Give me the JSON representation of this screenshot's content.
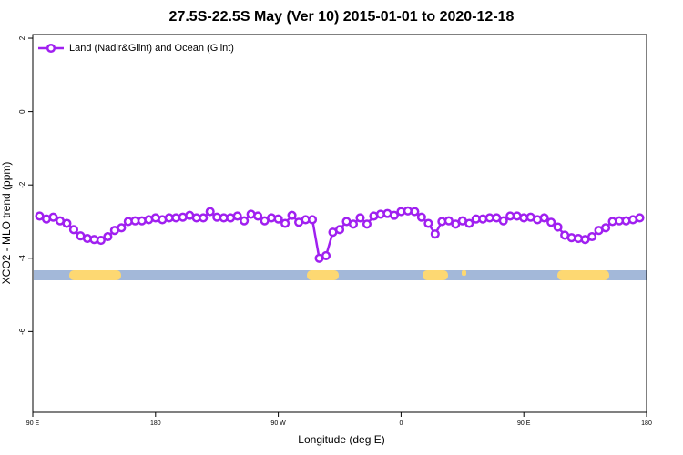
{
  "chart_data": {
    "type": "line",
    "title": "27.5S-22.5S May (Ver 10)   2015-01-01 to 2020-12-18",
    "xlabel": "Longitude (deg E)",
    "ylabel": "XCO2 - MLO trend (ppm)",
    "x": [
      95,
      100,
      105,
      110,
      115,
      120,
      125,
      130,
      135,
      140,
      145,
      150,
      155,
      160,
      165,
      170,
      175,
      180,
      185,
      190,
      195,
      200,
      205,
      210,
      215,
      220,
      225,
      230,
      235,
      240,
      245,
      250,
      255,
      260,
      265,
      270,
      275,
      280,
      285,
      290,
      295,
      300,
      305,
      310,
      315,
      320,
      325,
      330,
      335,
      340,
      345,
      350,
      355,
      360,
      365,
      370,
      375,
      380,
      385,
      390,
      395,
      400,
      405,
      410,
      415,
      420,
      425,
      430,
      435,
      440,
      445,
      450,
      455,
      460,
      465,
      470,
      475,
      480,
      485,
      490,
      495,
      500,
      505,
      510,
      515,
      520,
      525,
      530,
      535
    ],
    "series": [
      {
        "name": "Land (Nadir&Glint) and Ocean (Glint)",
        "color": "#a020f0",
        "values": [
          -2.85,
          -2.93,
          -2.88,
          -2.98,
          -3.05,
          -3.22,
          -3.39,
          -3.46,
          -3.49,
          -3.51,
          -3.41,
          -3.24,
          -3.17,
          -3.0,
          -2.98,
          -2.98,
          -2.95,
          -2.9,
          -2.95,
          -2.9,
          -2.9,
          -2.88,
          -2.83,
          -2.9,
          -2.9,
          -2.73,
          -2.88,
          -2.9,
          -2.9,
          -2.85,
          -2.98,
          -2.8,
          -2.85,
          -2.98,
          -2.9,
          -2.93,
          -3.05,
          -2.83,
          -3.02,
          -2.95,
          -2.95,
          -4.0,
          -3.93,
          -3.29,
          -3.22,
          -3.0,
          -3.07,
          -2.9,
          -3.07,
          -2.85,
          -2.8,
          -2.78,
          -2.83,
          -2.73,
          -2.71,
          -2.73,
          -2.88,
          -3.05,
          -3.34,
          -3.0,
          -2.98,
          -3.07,
          -2.98,
          -3.05,
          -2.93,
          -2.93,
          -2.9,
          -2.9,
          -2.98,
          -2.85,
          -2.85,
          -2.9,
          -2.88,
          -2.95,
          -2.9,
          -3.02,
          -3.15,
          -3.37,
          -3.44,
          -3.46,
          -3.49,
          -3.41,
          -3.24,
          -3.17,
          -3.0,
          -2.98,
          -2.98,
          -2.95,
          -2.9
        ]
      }
    ],
    "xlim": [
      90,
      540
    ],
    "xticks": [
      {
        "value": 90,
        "label": "90 E"
      },
      180,
      {
        "value": 270,
        "label": "90 W"
      },
      {
        "value": 360,
        "label": "0"
      },
      {
        "value": 450,
        "label": "90 E"
      },
      {
        "value": 540,
        "label": "180"
      }
    ],
    "ylim": [
      -8.2,
      2.1
    ],
    "yticks": [
      -6,
      -4,
      -2,
      0,
      2
    ],
    "grid": false,
    "legend": "top-left"
  }
}
